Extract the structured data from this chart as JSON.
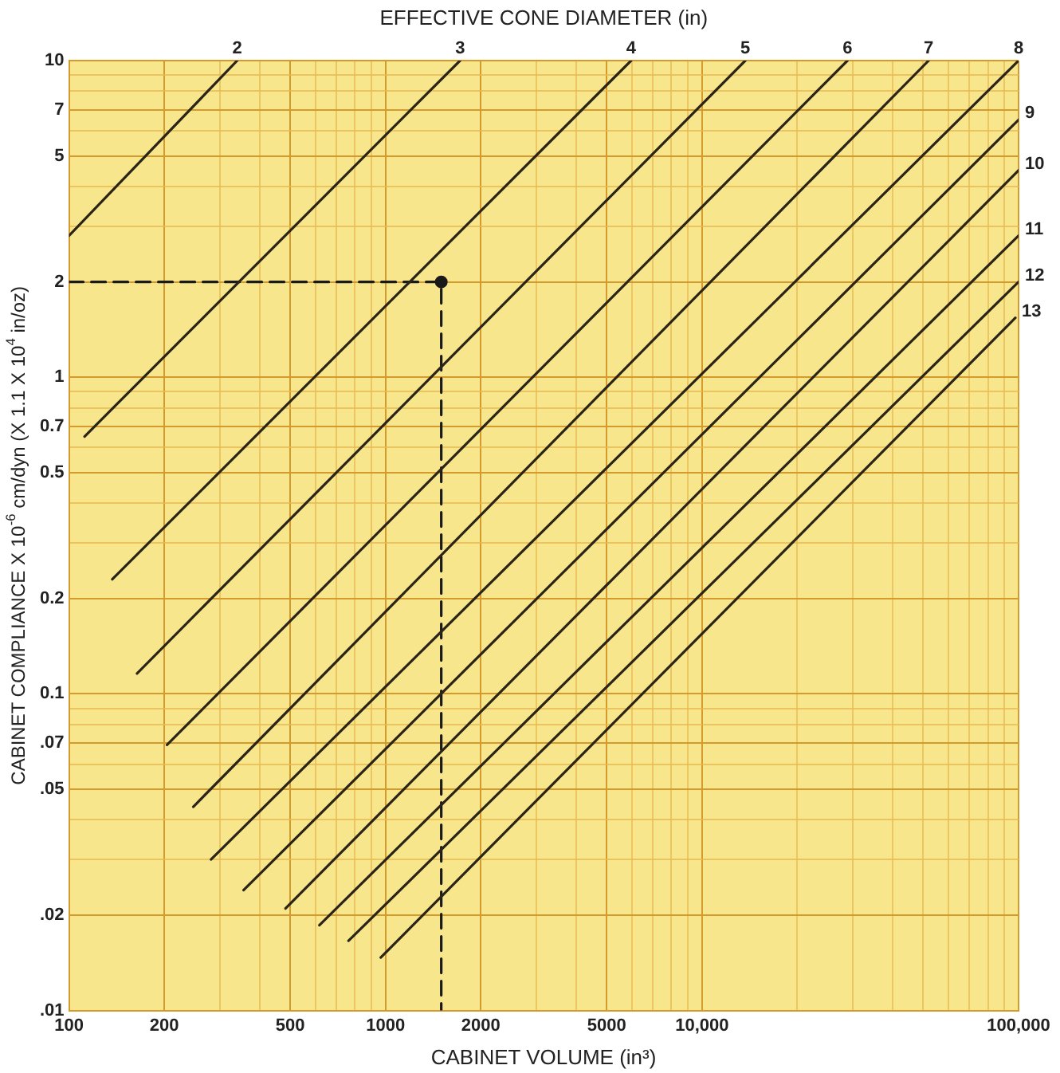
{
  "chart_data": {
    "type": "line",
    "title": "EFFECTIVE CONE DIAMETER (in)",
    "xlabel": "CABINET VOLUME (in³)",
    "ylabel": "CABINET COMPLIANCE X 10$^{-6}$ cm/dyn (X 1.1 X 10$^{4}$ in/oz)",
    "log": "xy",
    "grid": true,
    "marker": "none",
    "line_style": "solid",
    "xlim": [
      100,
      100000
    ],
    "ylim": [
      0.01,
      10
    ],
    "xticks": [
      100,
      200,
      {
        "value": 300,
        "label": null
      },
      {
        "value": 400,
        "label": null
      },
      500,
      {
        "value": 600,
        "label": null
      },
      {
        "value": 700,
        "label": null
      },
      {
        "value": 800,
        "label": null
      },
      {
        "value": 900,
        "label": null
      },
      1000,
      2000,
      {
        "value": 3000,
        "label": null
      },
      {
        "value": 4000,
        "label": null
      },
      5000,
      {
        "value": 6000,
        "label": null
      },
      {
        "value": 7000,
        "label": null
      },
      {
        "value": 8000,
        "label": null
      },
      {
        "value": 9000,
        "label": null
      },
      {
        "value": 10000,
        "label": "10,000"
      },
      {
        "value": 20000,
        "label": null
      },
      {
        "value": 30000,
        "label": null
      },
      {
        "value": 40000,
        "label": null
      },
      {
        "value": 50000,
        "label": null
      },
      {
        "value": 60000,
        "label": null
      },
      {
        "value": 70000,
        "label": null
      },
      {
        "value": 80000,
        "label": null
      },
      {
        "value": 90000,
        "label": null
      },
      {
        "value": 100000,
        "label": "100,000"
      }
    ],
    "yticks": [
      {
        "value": 0.01,
        "label": ".01"
      },
      {
        "value": 0.02,
        "label": ".02"
      },
      {
        "value": 0.03,
        "label": null
      },
      {
        "value": 0.04,
        "label": null
      },
      {
        "value": 0.05,
        "label": ".05"
      },
      {
        "value": 0.06,
        "label": null
      },
      {
        "value": 0.07,
        "label": ".07"
      },
      {
        "value": 0.08,
        "label": null
      },
      {
        "value": 0.09,
        "label": null
      },
      0.1,
      0.2,
      {
        "value": 0.3,
        "label": null
      },
      {
        "value": 0.4,
        "label": null
      },
      0.5,
      {
        "value": 0.6,
        "label": null
      },
      0.7,
      {
        "value": 0.8,
        "label": null
      },
      {
        "value": 0.9,
        "label": null
      },
      1,
      2,
      {
        "value": 3,
        "label": null
      },
      {
        "value": 4,
        "label": null
      },
      5,
      {
        "value": 6,
        "label": null
      },
      7,
      {
        "value": 8,
        "label": null
      },
      {
        "value": 9,
        "label": null
      },
      10
    ],
    "series": [
      {
        "name": "2",
        "color": "#2b2418",
        "x": [
          100,
          340
        ],
        "values": [
          2.8,
          10
        ]
      },
      {
        "name": "3",
        "color": "#2b2418",
        "x": [
          112,
          1720
        ],
        "values": [
          0.65,
          10
        ]
      },
      {
        "name": "4",
        "color": "#2b2418",
        "x": [
          137,
          5970
        ],
        "values": [
          0.23,
          10
        ]
      },
      {
        "name": "5",
        "color": "#2b2418",
        "x": [
          164,
          13700
        ],
        "values": [
          0.116,
          10
        ]
      },
      {
        "name": "6",
        "color": "#2b2418",
        "x": [
          204,
          28800
        ],
        "values": [
          0.069,
          10
        ]
      },
      {
        "name": "7",
        "color": "#2b2418",
        "x": [
          247,
          52000
        ],
        "values": [
          0.044,
          10
        ]
      },
      {
        "name": "8",
        "color": "#2b2418",
        "x": [
          281,
          100000
        ],
        "values": [
          0.03,
          10
        ]
      },
      {
        "name": "9",
        "color": "#2b2418",
        "x": [
          356,
          100000
        ],
        "values": [
          0.024,
          6.5
        ]
      },
      {
        "name": "10",
        "color": "#2b2418",
        "x": [
          483,
          100000
        ],
        "values": [
          0.021,
          4.5
        ]
      },
      {
        "name": "11",
        "color": "#2b2418",
        "x": [
          618,
          100000
        ],
        "values": [
          0.0186,
          2.8
        ]
      },
      {
        "name": "12",
        "color": "#2b2418",
        "x": [
          764,
          100000
        ],
        "values": [
          0.0166,
          2
        ]
      },
      {
        "name": "13",
        "color": "#2b2418",
        "x": [
          966,
          97700
        ],
        "values": [
          0.0147,
          1.54
        ]
      },
      {
        "color": "#1a1a1a",
        "line_style": "dashed",
        "x": [
          100,
          1500,
          1500
        ],
        "values": [
          2,
          2,
          0.01
        ]
      },
      {
        "type": "scatter",
        "marker": "circle",
        "color": "#1a1a1a",
        "x": [
          1500
        ],
        "values": [
          2
        ]
      }
    ]
  }
}
